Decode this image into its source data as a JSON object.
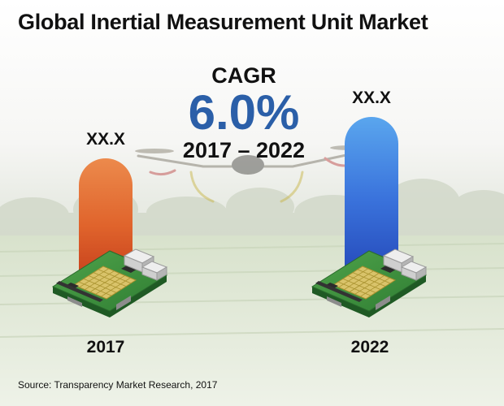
{
  "title": "Global Inertial Measurement Unit Market",
  "cagr": {
    "label": "CAGR",
    "value": "6.0%",
    "period": "2017 – 2022"
  },
  "source": "Source: Transparency Market Research, 2017",
  "colors": {
    "bar_2017": "#e4692a",
    "bar_2022": "#2f62d6",
    "cagr_accent": "#2b5fa8"
  },
  "icons": [
    "imu-circuit-board-icon",
    "drone-icon"
  ],
  "chart_data": {
    "type": "bar",
    "categories": [
      "2017",
      "2022"
    ],
    "values": [
      1.0,
      1.34
    ],
    "data_labels": [
      "XX.X",
      "XX.X"
    ],
    "title": "Global Inertial Measurement Unit Market",
    "xlabel": "",
    "ylabel": "",
    "grid": false,
    "legend": "none"
  }
}
